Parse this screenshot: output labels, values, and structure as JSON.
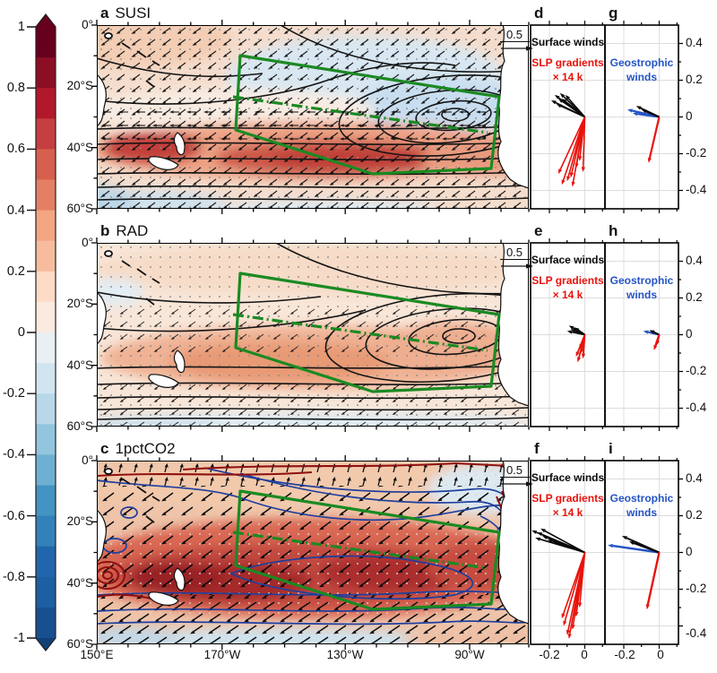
{
  "colorbar": {
    "ticks": [
      "1",
      "0.8",
      "0.6",
      "0.4",
      "0.2",
      "0",
      "-0.2",
      "-0.4",
      "-0.6",
      "-0.8",
      "-1"
    ],
    "colors": [
      "#67001f",
      "#8c0e25",
      "#b2182b",
      "#c53e40",
      "#d6604d",
      "#e57f64",
      "#f4a582",
      "#f7bc9e",
      "#fddbc7",
      "#fbeae0",
      "#e9f0f4",
      "#d1e5f0",
      "#b8d7e8",
      "#92c5de",
      "#6fb0d2",
      "#4393c3",
      "#3381b9",
      "#2166ac",
      "#1d5fa3",
      "#174f8f"
    ],
    "cap_top": "#67001f",
    "cap_bottom": "#113f77"
  },
  "maps": {
    "panels": [
      {
        "letter": "a",
        "name": "SUSI"
      },
      {
        "letter": "b",
        "name": "RAD"
      },
      {
        "letter": "c",
        "name": "1pctCO2"
      }
    ],
    "lat_ticks": [
      "0°",
      "20°S",
      "40°S",
      "60°S"
    ],
    "lon_ticks": [
      "150°E",
      "170°W",
      "130°W",
      "90°W"
    ],
    "ref_arrow_label": "0.5"
  },
  "vectors": {
    "letters_left": [
      "d",
      "e",
      "f"
    ],
    "letters_right": [
      "g",
      "h",
      "i"
    ],
    "x_ticks": [
      "-0.2",
      "0"
    ],
    "y_ticks": [
      "0.4",
      "0.2",
      "0",
      "-0.2",
      "-0.4"
    ],
    "legend": {
      "surface": "Surface winds",
      "slp_line1": "SLP gradients",
      "slp_line2": "× 14 k",
      "geo_line1": "Geostrophic",
      "geo_line2": "winds"
    },
    "colors": {
      "surface": "#0a0a0a",
      "slp": "#e8120b",
      "geo": "#2453c4",
      "region_box": "#1b8a22"
    }
  },
  "chart_data": [
    {
      "type": "map",
      "panel": "a",
      "title": "SUSI",
      "shading": "correlation shading, red positive to dark red ~0.8 over 40-55S mid Pacific, light blue ~-0.1 over 20-35S east Pacific",
      "shading_range": [
        -1,
        1
      ],
      "contours": "black SLP correlation contours with closed low centered near 25S,110W and zonal contours south of 40S",
      "vectors": "black surface wind correlation arrows, reference 0.5",
      "region_box": "green solid polygon with green dash-dot diagonal, subtropical SE Pacific"
    },
    {
      "type": "map",
      "panel": "b",
      "title": "RAD",
      "shading": "weak warm correlation shading ~0.2-0.4 band 35-50S, pale elsewhere, faint blue southern edge",
      "shading_range": [
        -1,
        1
      ],
      "contours": "black contours with closed low near 25S,105W, zonal lines south of 40S",
      "vectors": "sparse small black arrows with gray stippling",
      "region_box": "green solid polygon with green dash-dot diagonal"
    },
    {
      "type": "map",
      "panel": "c",
      "title": "1pctCO2",
      "shading": "strong positive shading up to ~0.9 across 30-50S, light blue along 55-60S and near Chile coast",
      "shading_range": [
        -1,
        1
      ],
      "contours": "dark red and blue trend contours fanning from equator to Chilean coast, dense red cluster at coast and west of New Zealand",
      "vectors": "large black wind trend arrows, northward near equator, westward/southwestward at mid-latitudes",
      "region_box": "green solid polygon with green dash-dot diagonal"
    },
    {
      "type": "quiver",
      "panel": "d",
      "x_range": [
        -0.31,
        0.12
      ],
      "y_range": [
        -0.5,
        0.5
      ],
      "series": [
        {
          "name": "Surface winds",
          "color": "#0a0a0a",
          "width": 1.6,
          "vectors": [
            [
              -0.17,
              0.12
            ],
            [
              -0.15,
              0.1
            ],
            [
              -0.13,
              0.1
            ],
            [
              -0.19,
              0.09
            ],
            [
              -0.16,
              0.07
            ],
            [
              -0.11,
              0.12
            ],
            [
              -0.14,
              0.13
            ]
          ]
        },
        {
          "name": "SLP gradients × 14 k",
          "color": "#e8120b",
          "width": 1.6,
          "vectors": [
            [
              -0.13,
              -0.37
            ],
            [
              -0.1,
              -0.35
            ],
            [
              -0.08,
              -0.33
            ],
            [
              -0.05,
              -0.28
            ],
            [
              -0.15,
              -0.31
            ],
            [
              -0.03,
              -0.24
            ],
            [
              -0.07,
              -0.38
            ],
            [
              -0.01,
              -0.3
            ]
          ]
        }
      ]
    },
    {
      "type": "quiver",
      "panel": "e",
      "x_range": [
        -0.31,
        0.12
      ],
      "y_range": [
        -0.5,
        0.5
      ],
      "series": [
        {
          "name": "Surface winds",
          "color": "#0a0a0a",
          "width": 1.8,
          "vectors": [
            [
              -0.08,
              0.03
            ],
            [
              -0.1,
              0.02
            ],
            [
              -0.06,
              0.04
            ],
            [
              -0.09,
              0.05
            ]
          ]
        },
        {
          "name": "SLP gradients × 14 k",
          "color": "#e8120b",
          "width": 1.8,
          "vectors": [
            [
              -0.05,
              -0.12
            ],
            [
              -0.02,
              -0.1
            ],
            [
              -0.03,
              -0.08
            ],
            [
              -0.01,
              -0.13
            ],
            [
              -0.04,
              -0.15
            ]
          ]
        }
      ]
    },
    {
      "type": "quiver",
      "panel": "f",
      "x_range": [
        -0.31,
        0.12
      ],
      "y_range": [
        -0.5,
        0.5
      ],
      "series": [
        {
          "name": "Surface winds",
          "color": "#0a0a0a",
          "width": 1.6,
          "vectors": [
            [
              -0.27,
              0.11
            ],
            [
              -0.24,
              0.09
            ],
            [
              -0.3,
              0.12
            ],
            [
              -0.21,
              0.07
            ],
            [
              -0.25,
              0.13
            ],
            [
              -0.18,
              0.06
            ],
            [
              -0.28,
              0.08
            ]
          ]
        },
        {
          "name": "SLP gradients × 14 k",
          "color": "#e8120b",
          "width": 1.6,
          "vectors": [
            [
              -0.1,
              -0.45
            ],
            [
              -0.07,
              -0.42
            ],
            [
              -0.12,
              -0.4
            ],
            [
              -0.05,
              -0.35
            ],
            [
              -0.09,
              -0.47
            ],
            [
              -0.03,
              -0.3
            ],
            [
              -0.13,
              -0.36
            ]
          ]
        }
      ]
    },
    {
      "type": "quiver",
      "panel": "g",
      "x_range": [
        -0.31,
        0.12
      ],
      "y_range": [
        -0.5,
        0.5
      ],
      "series": [
        {
          "name": "Geostrophic winds",
          "color": "#2453c4",
          "width": 2.2,
          "vectors": [
            [
              -0.18,
              0.04
            ],
            [
              -0.15,
              0.02
            ]
          ]
        },
        {
          "name": "Surface winds",
          "color": "#0a0a0a",
          "width": 2.0,
          "vectors": [
            [
              -0.13,
              0.06
            ],
            [
              -0.1,
              0.04
            ]
          ]
        },
        {
          "name": "SLP gradients × 14 k",
          "color": "#e8120b",
          "width": 2.2,
          "vectors": [
            [
              -0.06,
              -0.25
            ]
          ]
        }
      ]
    },
    {
      "type": "quiver",
      "panel": "h",
      "x_range": [
        -0.31,
        0.12
      ],
      "y_range": [
        -0.5,
        0.5
      ],
      "series": [
        {
          "name": "Geostrophic winds",
          "color": "#2453c4",
          "width": 2.2,
          "vectors": [
            [
              -0.09,
              0.02
            ]
          ]
        },
        {
          "name": "Surface winds",
          "color": "#0a0a0a",
          "width": 2.0,
          "vectors": [
            [
              -0.055,
              0.025
            ]
          ]
        },
        {
          "name": "SLP gradients × 14 k",
          "color": "#e8120b",
          "width": 2.2,
          "vectors": [
            [
              -0.03,
              -0.085
            ],
            [
              -0.015,
              -0.06
            ]
          ]
        }
      ]
    },
    {
      "type": "quiver",
      "panel": "i",
      "x_range": [
        -0.31,
        0.12
      ],
      "y_range": [
        -0.5,
        0.5
      ],
      "series": [
        {
          "name": "Geostrophic winds",
          "color": "#2453c4",
          "width": 2.4,
          "vectors": [
            [
              -0.29,
              0.04
            ]
          ]
        },
        {
          "name": "Surface winds",
          "color": "#0a0a0a",
          "width": 2.0,
          "vectors": [
            [
              -0.21,
              0.09
            ],
            [
              -0.17,
              0.06
            ]
          ]
        },
        {
          "name": "SLP gradients × 14 k",
          "color": "#e8120b",
          "width": 2.4,
          "vectors": [
            [
              -0.07,
              -0.31
            ]
          ]
        }
      ]
    }
  ]
}
